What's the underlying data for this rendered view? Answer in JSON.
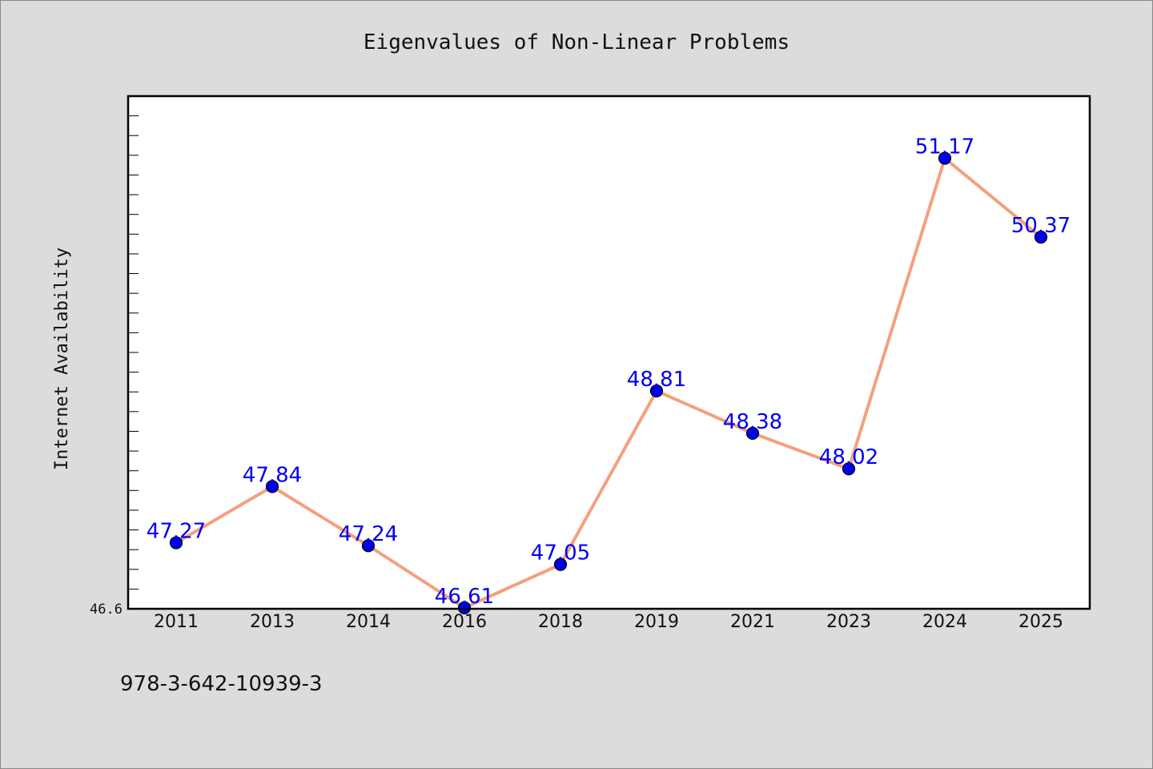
{
  "chart_data": {
    "type": "line",
    "title": "Eigenvalues of Non-Linear Problems",
    "xlabel": "",
    "ylabel": "Internet Availability",
    "categories": [
      "2011",
      "2013",
      "2014",
      "2016",
      "2018",
      "2019",
      "2021",
      "2023",
      "2024",
      "2025"
    ],
    "series": [
      {
        "values": [
          47.27,
          47.84,
          47.24,
          46.61,
          47.05,
          48.81,
          48.38,
          48.02,
          51.17,
          50.37
        ],
        "labels": [
          "47.27",
          "47.84",
          "47.24",
          "46.61",
          "47.05",
          "48.81",
          "48.38",
          "48.02",
          "51.17",
          "50.37"
        ]
      }
    ],
    "ylim": [
      46.6,
      51.8
    ],
    "ytick_labels": [
      {
        "value": 46.6,
        "label": "46.6"
      }
    ],
    "minor_tick_step": 0.2,
    "grid": false,
    "colors": {
      "line": "#f4a07e",
      "marker": "#0000ee",
      "marker_edge": "#000000",
      "data_label": "#0000ee",
      "plot_background": "#ffffff",
      "figure_background": "#dcdcdc"
    }
  },
  "footer": {
    "text": "978-3-642-10939-3"
  }
}
